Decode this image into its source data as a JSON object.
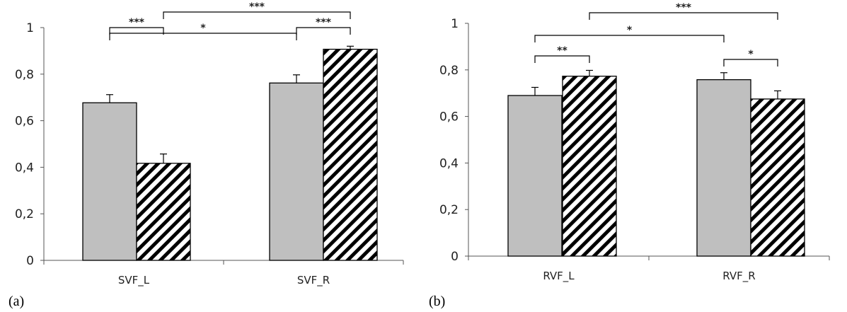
{
  "chart_data": [
    {
      "type": "bar",
      "panel_label": "(a)",
      "categories": [
        "SVF_L",
        "SVF_R"
      ],
      "series": [
        {
          "fill": "solid",
          "color": "#bfbfbf",
          "values": [
            0.677,
            0.762
          ],
          "errors": [
            0.035,
            0.035
          ]
        },
        {
          "fill": "hatched",
          "color": "#000000",
          "values": [
            0.417,
            0.907
          ],
          "errors": [
            0.04,
            0.013
          ]
        }
      ],
      "ylim": [
        0,
        1
      ],
      "yticks": [
        "0",
        "0,2",
        "0,4",
        "0,6",
        "0,8",
        "1"
      ],
      "grid": false,
      "significance": [
        {
          "label": "***",
          "from": "SVF_L.solid",
          "to": "SVF_L.hatched"
        },
        {
          "label": "***",
          "from": "SVF_R.solid",
          "to": "SVF_R.hatched"
        },
        {
          "label": "*",
          "from": "SVF_L.solid",
          "to": "SVF_R.solid"
        },
        {
          "label": "***",
          "from": "SVF_L.hatched",
          "to": "SVF_R.hatched"
        }
      ]
    },
    {
      "type": "bar",
      "panel_label": "(b)",
      "categories": [
        "RVF_L",
        "RVF_R"
      ],
      "series": [
        {
          "fill": "solid",
          "color": "#bfbfbf",
          "values": [
            0.69,
            0.758
          ],
          "errors": [
            0.035,
            0.03
          ]
        },
        {
          "fill": "hatched",
          "color": "#000000",
          "values": [
            0.773,
            0.675
          ],
          "errors": [
            0.025,
            0.035
          ]
        }
      ],
      "ylim": [
        0,
        1
      ],
      "yticks": [
        "0",
        "0,2",
        "0,4",
        "0,6",
        "0,8",
        "1"
      ],
      "grid": false,
      "significance": [
        {
          "label": "**",
          "from": "RVF_L.solid",
          "to": "RVF_L.hatched"
        },
        {
          "label": "*",
          "from": "RVF_R.solid",
          "to": "RVF_R.hatched"
        },
        {
          "label": "*",
          "from": "RVF_L.solid",
          "to": "RVF_R.solid"
        },
        {
          "label": "***",
          "from": "RVF_L.hatched",
          "to": "RVF_R.hatched"
        }
      ]
    }
  ]
}
